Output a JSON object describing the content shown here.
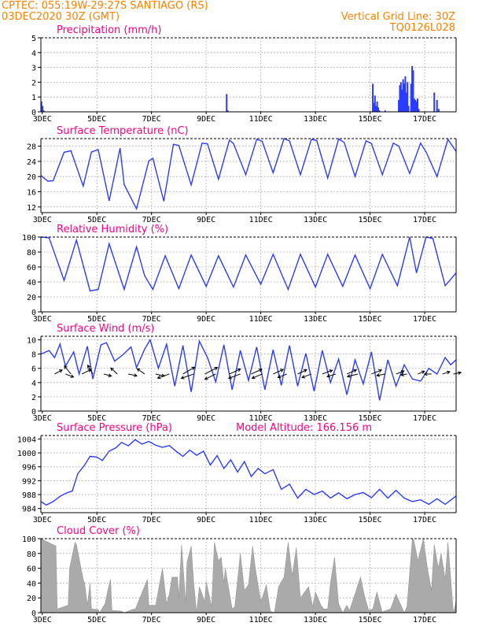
{
  "header": {
    "line1": "CPTEC:   055:19W-29:27S  SANTIAGO (RS)",
    "line2": "03DEC2020 30Z (GMT)",
    "grid_note": "Vertical Grid Line: 30Z",
    "code": "TQ0126L028",
    "model_altitude": "Model Altitude: 166.156  m"
  },
  "colors": {
    "header": "#ff8000",
    "panel_title": "#ff0080",
    "series_line": "#2c3cff",
    "bars": "#2a3cff",
    "cloud_fill": "#aaaaaa",
    "grid": "#9a9a9a"
  },
  "chart_data": [
    {
      "type": "bar",
      "title": "Precipitation  (mm/h)",
      "x_tick_labels": [
        "3DEC",
        "5DEC",
        "7DEC",
        "9DEC",
        "11DEC",
        "13DEC",
        "15DEC",
        "17DEC"
      ],
      "x_unit": "days since 03DEC2020 00Z",
      "xlim": [
        0,
        15.2
      ],
      "ylim": [
        0,
        5
      ],
      "y_ticks": [
        0,
        1,
        2,
        3,
        4,
        5
      ],
      "grid": true,
      "x": [
        0.02,
        0.06,
        0.1,
        6.8,
        6.84,
        12.15,
        12.19,
        12.23,
        12.27,
        12.31,
        12.35,
        12.39,
        12.6,
        13.1,
        13.14,
        13.18,
        13.22,
        13.26,
        13.3,
        13.34,
        13.38,
        13.42,
        13.46,
        13.55,
        13.59,
        13.63,
        13.67,
        13.71,
        13.75,
        13.79,
        13.83,
        14.4,
        14.5,
        14.56
      ],
      "values": [
        0.7,
        0.4,
        0.1,
        1.2,
        0.1,
        1.9,
        0.6,
        1.1,
        0.4,
        0.7,
        0.3,
        0.1,
        0.1,
        0.8,
        1.8,
        2.0,
        1.5,
        2.2,
        1.9,
        2.4,
        1.3,
        2.0,
        0.4,
        1.9,
        3.1,
        2.8,
        0.9,
        0.8,
        0.7,
        0.9,
        0.2,
        1.3,
        0.8,
        0.2
      ]
    },
    {
      "type": "line",
      "title": "Surface Temperature (nC)",
      "x_tick_labels": [
        "3DEC",
        "5DEC",
        "7DEC",
        "9DEC",
        "11DEC",
        "13DEC",
        "15DEC",
        "17DEC"
      ],
      "x_unit": "days since 03DEC2020 00Z",
      "xlim": [
        0,
        15.2
      ],
      "ylim": [
        10.5,
        30
      ],
      "y_ticks": [
        12,
        16,
        20,
        24,
        28
      ],
      "grid": true,
      "x": [
        0.0,
        0.25,
        0.45,
        0.85,
        1.1,
        1.55,
        1.85,
        2.1,
        2.5,
        2.9,
        3.05,
        3.5,
        3.95,
        4.1,
        4.5,
        4.85,
        5.05,
        5.5,
        5.9,
        6.1,
        6.5,
        6.9,
        7.05,
        7.5,
        7.9,
        8.1,
        8.5,
        8.9,
        9.1,
        9.5,
        9.9,
        10.1,
        10.5,
        10.9,
        11.1,
        11.5,
        11.9,
        12.1,
        12.5,
        12.9,
        13.1,
        13.5,
        13.9,
        14.1,
        14.5,
        14.9,
        15.2
      ],
      "values": [
        20.3,
        18.8,
        18.9,
        26.4,
        26.8,
        17.5,
        26.5,
        27.1,
        13.6,
        27.5,
        17.9,
        11.5,
        24.1,
        24.8,
        13.5,
        28.5,
        28.2,
        17.8,
        28.8,
        28.6,
        19.3,
        29.6,
        28.7,
        20.5,
        29.8,
        29.3,
        21.0,
        30.0,
        29.4,
        20.5,
        29.8,
        29.5,
        19.6,
        29.9,
        29.0,
        20.0,
        29.4,
        28.7,
        20.5,
        28.8,
        28.0,
        20.8,
        28.8,
        26.5,
        20.0,
        29.8,
        26.6
      ]
    },
    {
      "type": "line",
      "title": "Relative Humidity  (%)",
      "x_tick_labels": [
        "3DEC",
        "5DEC",
        "7DEC",
        "9DEC",
        "11DEC",
        "13DEC",
        "15DEC",
        "17DEC"
      ],
      "x_unit": "days since 03DEC2020 00Z",
      "xlim": [
        0,
        15.2
      ],
      "ylim": [
        0,
        100
      ],
      "y_ticks": [
        0,
        20,
        40,
        60,
        80,
        100
      ],
      "grid": true,
      "x": [
        0.0,
        0.3,
        0.85,
        1.3,
        1.8,
        2.1,
        2.5,
        3.05,
        3.5,
        3.8,
        4.1,
        4.55,
        5.05,
        5.5,
        6.05,
        6.5,
        7.05,
        7.5,
        8.05,
        8.5,
        9.05,
        9.5,
        10.05,
        10.5,
        11.05,
        11.5,
        12.05,
        12.5,
        13.05,
        13.5,
        13.75,
        14.1,
        14.35,
        14.8,
        15.2
      ],
      "values": [
        100,
        99,
        42,
        96,
        28,
        30,
        91,
        30,
        87,
        48,
        30,
        75,
        31,
        76,
        34,
        75,
        33,
        76,
        37,
        77,
        30,
        77,
        33,
        77,
        34,
        76,
        31,
        77,
        35,
        100,
        52,
        100,
        98,
        35,
        52
      ]
    },
    {
      "type": "line",
      "title": "Surface Wind  (m/s)",
      "x_tick_labels": [
        "3DEC",
        "5DEC",
        "7DEC",
        "9DEC",
        "11DEC",
        "13DEC",
        "15DEC",
        "17DEC"
      ],
      "x_unit": "days since 03DEC2020 00Z",
      "xlim": [
        0,
        15.2
      ],
      "ylim": [
        0,
        10.5
      ],
      "y_ticks": [
        0,
        2,
        4,
        6,
        8,
        10
      ],
      "grid": true,
      "x": [
        0.0,
        0.3,
        0.5,
        0.7,
        0.9,
        1.2,
        1.4,
        1.7,
        1.9,
        2.2,
        2.4,
        2.7,
        3.0,
        3.3,
        3.5,
        3.8,
        4.0,
        4.3,
        4.6,
        4.9,
        5.2,
        5.5,
        5.8,
        6.1,
        6.4,
        6.7,
        7.0,
        7.3,
        7.6,
        7.9,
        8.2,
        8.5,
        8.8,
        9.1,
        9.4,
        9.7,
        10.0,
        10.3,
        10.6,
        10.9,
        11.2,
        11.5,
        11.8,
        12.1,
        12.4,
        12.7,
        13.0,
        13.3,
        13.6,
        13.9,
        14.2,
        14.5,
        14.8,
        15.0,
        15.2
      ],
      "values": [
        8.0,
        8.5,
        7.5,
        9.4,
        6.3,
        8.3,
        5.2,
        9.1,
        4.5,
        9.3,
        9.6,
        7.0,
        7.9,
        9.0,
        6.1,
        8.7,
        10.0,
        6.0,
        9.4,
        3.5,
        9.2,
        2.7,
        9.8,
        7.5,
        4.1,
        9.3,
        3.0,
        8.5,
        4.3,
        9.0,
        3.0,
        8.6,
        3.6,
        9.2,
        3.5,
        8.1,
        2.8,
        8.5,
        4.0,
        7.3,
        2.3,
        7.2,
        3.8,
        8.3,
        1.5,
        7.2,
        3.5,
        6.5,
        4.5,
        4.2,
        6.0,
        5.2,
        7.5,
        6.5,
        7.2
      ],
      "vectors": {
        "x": [
          0.5,
          0.9,
          1.1,
          1.5,
          1.9,
          2.3,
          2.8,
          3.2,
          3.8,
          4.2,
          4.7,
          5.2,
          5.6,
          6.0,
          6.4,
          6.9,
          7.3,
          7.7,
          8.1,
          8.5,
          9.0,
          9.4,
          9.9,
          10.3,
          10.8,
          11.2,
          11.6,
          12.1,
          12.6,
          13.0,
          13.4,
          13.8,
          14.3,
          14.7,
          15.1
        ],
        "u": [
          3.0,
          3.2,
          -2.6,
          3.6,
          -2.0,
          3.0,
          -2.6,
          3.4,
          -3.0,
          3.5,
          -4.6,
          4.6,
          -5.0,
          5.0,
          -4.3,
          4.4,
          -4.6,
          4.2,
          -4.0,
          4.0,
          -3.5,
          3.6,
          -3.7,
          4.0,
          -3.5,
          3.8,
          -4.1,
          4.0,
          -3.3,
          3.2,
          -2.4,
          2.6,
          -2.8,
          2.9,
          3.0
        ],
        "v": [
          1.6,
          -1.2,
          3.2,
          1.8,
          3.5,
          -0.8,
          2.4,
          -0.7,
          2.1,
          -0.8,
          -1.6,
          2.7,
          -1.7,
          2.6,
          -2.1,
          2.0,
          -1.7,
          1.9,
          -1.7,
          1.8,
          -1.4,
          1.7,
          -1.4,
          1.5,
          -1.0,
          1.7,
          -1.0,
          1.6,
          -0.6,
          1.2,
          -0.4,
          1.1,
          0.0,
          0.9,
          0.6
        ]
      }
    },
    {
      "type": "line",
      "title": "Surface Pressure  (hPa)",
      "x_tick_labels": [
        "3DEC",
        "5DEC",
        "7DEC",
        "9DEC",
        "11DEC",
        "13DEC",
        "15DEC",
        "17DEC"
      ],
      "x_unit": "days since 03DEC2020 00Z",
      "xlim": [
        0,
        15.2
      ],
      "ylim": [
        982.8,
        1005
      ],
      "y_ticks": [
        984,
        988,
        992,
        996,
        1000,
        1004
      ],
      "grid": true,
      "x": [
        0.0,
        0.2,
        0.45,
        0.7,
        0.95,
        1.15,
        1.35,
        1.6,
        1.8,
        2.05,
        2.25,
        2.5,
        2.75,
        2.95,
        3.2,
        3.45,
        3.7,
        3.95,
        4.2,
        4.45,
        4.7,
        4.95,
        5.2,
        5.45,
        5.7,
        5.95,
        6.2,
        6.45,
        6.7,
        6.95,
        7.2,
        7.45,
        7.7,
        7.95,
        8.2,
        8.5,
        8.8,
        9.1,
        9.4,
        9.7,
        10.0,
        10.3,
        10.6,
        10.9,
        11.2,
        11.5,
        11.8,
        12.1,
        12.4,
        12.7,
        13.0,
        13.3,
        13.6,
        13.9,
        14.2,
        14.5,
        14.8,
        15.2
      ],
      "values": [
        986.0,
        985.0,
        986.0,
        987.5,
        988.5,
        989.0,
        994.0,
        996.5,
        999.0,
        998.8,
        997.8,
        1000.5,
        1001.5,
        1003.0,
        1002.0,
        1003.8,
        1002.5,
        1003.3,
        1002.2,
        1001.6,
        1002.1,
        1000.5,
        999.0,
        1000.8,
        999.3,
        1000.5,
        996.5,
        999.2,
        995.5,
        998.0,
        994.5,
        997.5,
        993.2,
        995.5,
        994.0,
        995.2,
        989.5,
        991.0,
        987.0,
        989.5,
        988.0,
        989.0,
        987.0,
        988.5,
        986.8,
        988.0,
        988.6,
        987.1,
        989.5,
        987.0,
        989.2,
        987.0,
        986.0,
        986.5,
        985.2,
        986.8,
        985.2,
        987.6
      ]
    },
    {
      "type": "area",
      "title": "Cloud Cover  (%)",
      "x_tick_labels": [
        "3DEC",
        "5DEC",
        "7DEC",
        "9DEC",
        "11DEC",
        "13DEC",
        "15DEC",
        "17DEC"
      ],
      "x_unit": "days since 03DEC2020 00Z",
      "xlim": [
        0,
        15.2
      ],
      "ylim": [
        0,
        100
      ],
      "y_ticks": [
        0,
        20,
        40,
        60,
        80,
        100
      ],
      "grid": true,
      "x": [
        0.0,
        0.55,
        0.6,
        1.0,
        1.05,
        1.25,
        1.3,
        1.55,
        1.6,
        1.7,
        1.8,
        1.85,
        2.1,
        2.15,
        2.35,
        2.45,
        2.55,
        2.6,
        2.95,
        3.05,
        3.4,
        3.45,
        3.9,
        3.95,
        4.2,
        4.45,
        4.6,
        4.7,
        4.8,
        5.0,
        5.05,
        5.15,
        5.3,
        5.35,
        5.5,
        5.6,
        5.7,
        5.8,
        6.0,
        6.05,
        6.25,
        6.35,
        6.5,
        6.6,
        6.7,
        6.75,
        7.0,
        7.1,
        7.3,
        7.45,
        7.6,
        7.75,
        7.85,
        8.05,
        8.15,
        8.25,
        8.4,
        8.55,
        8.7,
        8.9,
        9.05,
        9.2,
        9.35,
        9.5,
        9.6,
        9.8,
        9.95,
        10.05,
        10.25,
        10.35,
        10.5,
        10.6,
        10.75,
        10.9,
        11.05,
        11.2,
        11.3,
        11.5,
        11.7,
        11.85,
        12.0,
        12.15,
        12.3,
        12.5,
        12.55,
        12.8,
        13.0,
        13.3,
        13.4,
        13.6,
        13.65,
        13.8,
        14.0,
        14.15,
        14.3,
        14.4,
        14.55,
        14.65,
        14.8,
        14.9,
        15.1,
        15.2
      ],
      "values": [
        100,
        90,
        5,
        10,
        60,
        95,
        92,
        45,
        40,
        10,
        40,
        5,
        4,
        0,
        12,
        30,
        45,
        3,
        2,
        0,
        5,
        4,
        45,
        10,
        10,
        60,
        12,
        25,
        48,
        48,
        20,
        92,
        12,
        68,
        90,
        38,
        0,
        35,
        15,
        42,
        8,
        95,
        70,
        75,
        40,
        60,
        5,
        8,
        80,
        30,
        38,
        90,
        60,
        15,
        25,
        38,
        2,
        0,
        35,
        48,
        95,
        50,
        88,
        20,
        25,
        35,
        8,
        28,
        10,
        5,
        5,
        40,
        75,
        12,
        0,
        10,
        3,
        25,
        48,
        22,
        3,
        5,
        28,
        0,
        2,
        5,
        25,
        0,
        8,
        100,
        98,
        70,
        100,
        60,
        30,
        92,
        60,
        80,
        45,
        95,
        0,
        15
      ]
    }
  ]
}
